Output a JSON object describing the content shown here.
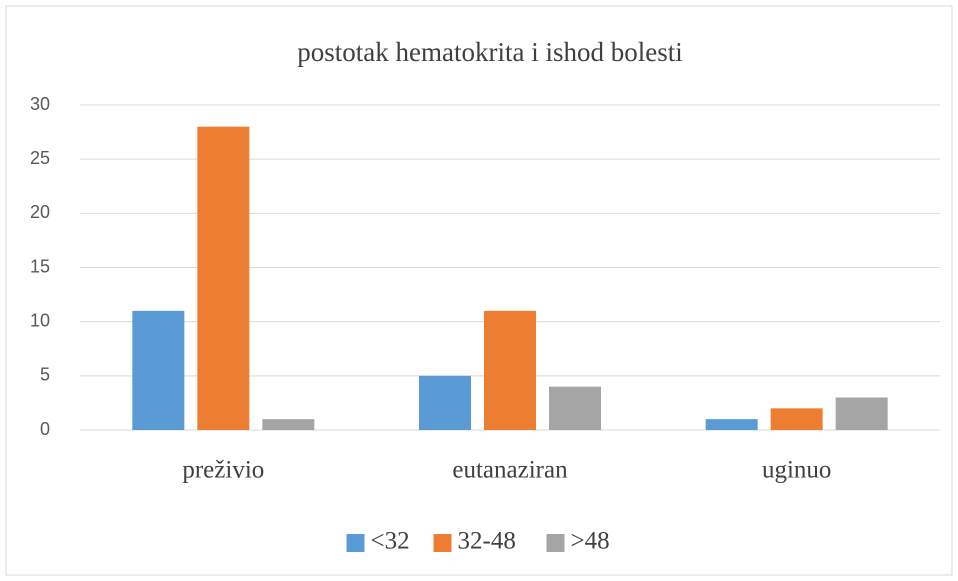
{
  "chart_data": {
    "type": "bar",
    "title": "postotak hematokrita i ishod bolesti",
    "categories": [
      "preživio",
      "eutanaziran",
      "uginuo"
    ],
    "series": [
      {
        "name": "<32",
        "color": "#5b9bd5",
        "values": [
          11,
          5,
          1
        ]
      },
      {
        "name": "32-48",
        "color": "#ed7d31",
        "values": [
          28,
          11,
          2
        ]
      },
      {
        "name": ">48",
        "color": "#a5a5a5",
        "values": [
          1,
          4,
          3
        ]
      }
    ],
    "ylim": [
      0,
      30
    ],
    "yticks": [
      0,
      5,
      10,
      15,
      20,
      25,
      30
    ],
    "grid": true,
    "legend": "bottom"
  }
}
